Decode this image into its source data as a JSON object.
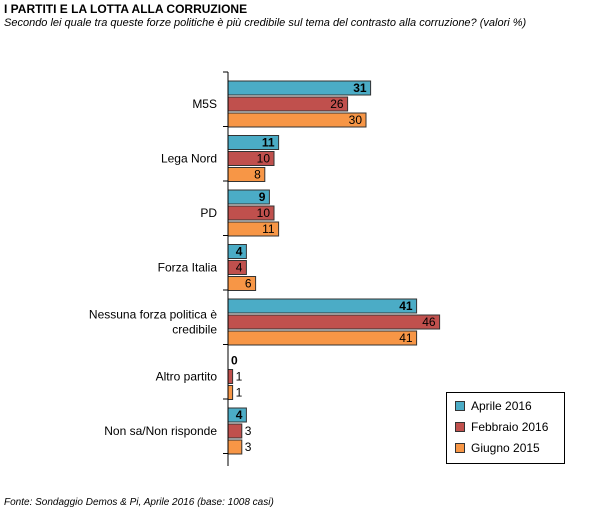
{
  "title": "I PARTITI E LA LOTTA ALLA CORRUZIONE",
  "subtitle": "Secondo lei quale tra queste forze politiche è più credibile sul tema del contrasto alla corruzione? (valori %)",
  "source": "Fonte: Sondaggio Demos & Pi, Aprile 2016 (base: 1008 casi)",
  "chart_data": {
    "type": "bar",
    "orientation": "horizontal",
    "categories": [
      "M5S",
      "Lega Nord",
      "PD",
      "Forza Italia",
      "Nessuna forza politica è credibile",
      "Altro partito",
      "Non sa/Non risponde"
    ],
    "category_lines": [
      [
        "M5S"
      ],
      [
        "Lega Nord"
      ],
      [
        "PD"
      ],
      [
        "Forza Italia"
      ],
      [
        "Nessuna forza politica è",
        "credibile"
      ],
      [
        "Altro partito"
      ],
      [
        "Non sa/Non risponde"
      ]
    ],
    "series": [
      {
        "name": "Aprile 2016",
        "values": [
          31,
          11,
          9,
          4,
          41,
          0,
          4
        ],
        "color": "#4BACC6",
        "bold_labels": true
      },
      {
        "name": "Febbraio 2016",
        "values": [
          26,
          10,
          10,
          4,
          46,
          1,
          3
        ],
        "color": "#C0504D",
        "bold_labels": false
      },
      {
        "name": "Giugno 2015",
        "values": [
          30,
          8,
          11,
          6,
          41,
          1,
          3
        ],
        "color": "#F79646",
        "bold_labels": false
      }
    ],
    "xlim": [
      0,
      50
    ],
    "grid": false,
    "legend_position": "bottom-right"
  }
}
